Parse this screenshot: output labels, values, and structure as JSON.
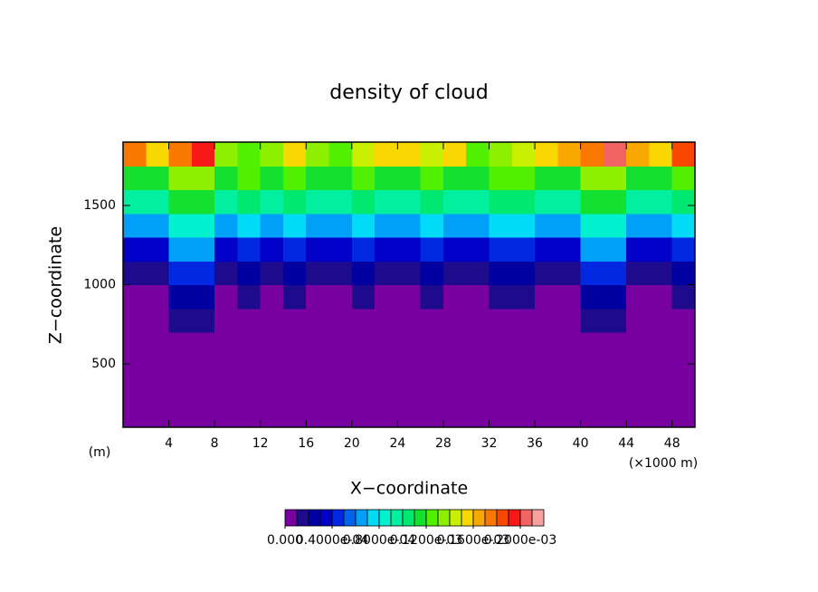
{
  "chart_data": {
    "type": "contour",
    "title": "density of cloud",
    "x_label": "X−coordinate",
    "y_label": "Z−coordinate",
    "x_unit": "(×1000 m)",
    "y_unit": "(m)",
    "x": [
      1,
      3,
      5,
      7,
      9,
      11,
      13,
      15,
      17,
      19,
      21,
      23,
      25,
      27,
      29,
      31,
      33,
      35,
      37,
      39,
      41,
      43,
      45,
      47,
      49
    ],
    "y": [
      175,
      325,
      475,
      625,
      775,
      925,
      1075,
      1225,
      1375,
      1525,
      1675,
      1825
    ],
    "values": [
      [
        0,
        0,
        0,
        0,
        0,
        0,
        1e-05,
        3e-05,
        6e-05,
        9e-05,
        0.00011,
        0.00017
      ],
      [
        0,
        0,
        0,
        0,
        0,
        0,
        1e-05,
        3e-05,
        6e-05,
        9e-05,
        0.00011,
        0.00015
      ],
      [
        0,
        0,
        0,
        0,
        1e-05,
        2e-05,
        4e-05,
        6e-05,
        8e-05,
        0.00011,
        0.00013,
        0.00017
      ],
      [
        0,
        0,
        0,
        0,
        1e-05,
        2e-05,
        4e-05,
        6e-05,
        8e-05,
        0.00011,
        0.00013,
        0.00019
      ],
      [
        0,
        0,
        0,
        0,
        0,
        0,
        1e-05,
        3e-05,
        6e-05,
        9e-05,
        0.00011,
        0.00013
      ],
      [
        0,
        0,
        0,
        0,
        0,
        1e-05,
        2e-05,
        4e-05,
        7e-05,
        0.0001,
        0.00012,
        0.00012
      ],
      [
        0,
        0,
        0,
        0,
        0,
        0,
        1e-05,
        3e-05,
        6e-05,
        9e-05,
        0.00011,
        0.00013
      ],
      [
        0,
        0,
        0,
        0,
        0,
        1e-05,
        2e-05,
        4e-05,
        7e-05,
        0.0001,
        0.00012,
        0.00015
      ],
      [
        0,
        0,
        0,
        0,
        0,
        0,
        1e-05,
        3e-05,
        6e-05,
        9e-05,
        0.00011,
        0.00013
      ],
      [
        0,
        0,
        0,
        0,
        0,
        0,
        1e-05,
        3e-05,
        6e-05,
        9e-05,
        0.00011,
        0.00012
      ],
      [
        0,
        0,
        0,
        0,
        0,
        1e-05,
        2e-05,
        4e-05,
        7e-05,
        0.0001,
        0.00012,
        0.00014
      ],
      [
        0,
        0,
        0,
        0,
        0,
        0,
        1e-05,
        3e-05,
        6e-05,
        9e-05,
        0.00011,
        0.00015
      ],
      [
        0,
        0,
        0,
        0,
        0,
        0,
        1e-05,
        3e-05,
        6e-05,
        9e-05,
        0.00011,
        0.00015
      ],
      [
        0,
        0,
        0,
        0,
        0,
        1e-05,
        2e-05,
        4e-05,
        7e-05,
        0.0001,
        0.00012,
        0.00014
      ],
      [
        0,
        0,
        0,
        0,
        0,
        0,
        1e-05,
        3e-05,
        6e-05,
        9e-05,
        0.00011,
        0.00015
      ],
      [
        0,
        0,
        0,
        0,
        0,
        0,
        1e-05,
        3e-05,
        6e-05,
        9e-05,
        0.00011,
        0.00012
      ],
      [
        0,
        0,
        0,
        0,
        0,
        1e-05,
        2e-05,
        4e-05,
        7e-05,
        0.0001,
        0.00012,
        0.00013
      ],
      [
        0,
        0,
        0,
        0,
        0,
        1e-05,
        2e-05,
        4e-05,
        7e-05,
        0.0001,
        0.00012,
        0.00014
      ],
      [
        0,
        0,
        0,
        0,
        0,
        0,
        1e-05,
        3e-05,
        6e-05,
        9e-05,
        0.00011,
        0.00015
      ],
      [
        0,
        0,
        0,
        0,
        0,
        0,
        1e-05,
        3e-05,
        6e-05,
        9e-05,
        0.00011,
        0.00016
      ],
      [
        0,
        0,
        0,
        0,
        1e-05,
        2e-05,
        4e-05,
        6e-05,
        8e-05,
        0.00011,
        0.00013,
        0.00017
      ],
      [
        0,
        0,
        0,
        0,
        1e-05,
        2e-05,
        4e-05,
        6e-05,
        8e-05,
        0.00011,
        0.00013,
        0.0002
      ],
      [
        0,
        0,
        0,
        0,
        0,
        0,
        1e-05,
        3e-05,
        6e-05,
        9e-05,
        0.00011,
        0.00016
      ],
      [
        0,
        0,
        0,
        0,
        0,
        0,
        1e-05,
        3e-05,
        6e-05,
        9e-05,
        0.00011,
        0.00015
      ],
      [
        0,
        0,
        0,
        0,
        0,
        1e-05,
        2e-05,
        4e-05,
        7e-05,
        0.0001,
        0.00012,
        0.00018
      ]
    ],
    "xlim": [
      0,
      50
    ],
    "ylim": [
      100,
      1900
    ],
    "xticks": [
      4,
      8,
      12,
      16,
      20,
      24,
      28,
      32,
      36,
      40,
      44,
      48
    ],
    "yticks": [
      500,
      1000,
      1500
    ],
    "level_step": 1e-05,
    "colors": [
      "#7800a0",
      "#1e0a8c",
      "#0000a0",
      "#0000c8",
      "#0028e0",
      "#0064f0",
      "#00a0f8",
      "#00dcf8",
      "#00f0d0",
      "#00f0a0",
      "#00e870",
      "#14e030",
      "#50f000",
      "#8cf000",
      "#c8f000",
      "#f8d800",
      "#f8a800",
      "#f87800",
      "#f84800",
      "#f81818",
      "#f06464",
      "#f8a0a0"
    ],
    "colorbar_ticks": [
      {
        "value": 0,
        "label": "0.000"
      },
      {
        "value": 4e-05,
        "label": "0.4000e-04"
      },
      {
        "value": 8e-05,
        "label": "0.8000e-04"
      },
      {
        "value": 0.00012,
        "label": "0.1200e-03"
      },
      {
        "value": 0.00016,
        "label": "0.1600e-03"
      },
      {
        "value": 0.0002,
        "label": "0.2000e-03"
      }
    ]
  }
}
